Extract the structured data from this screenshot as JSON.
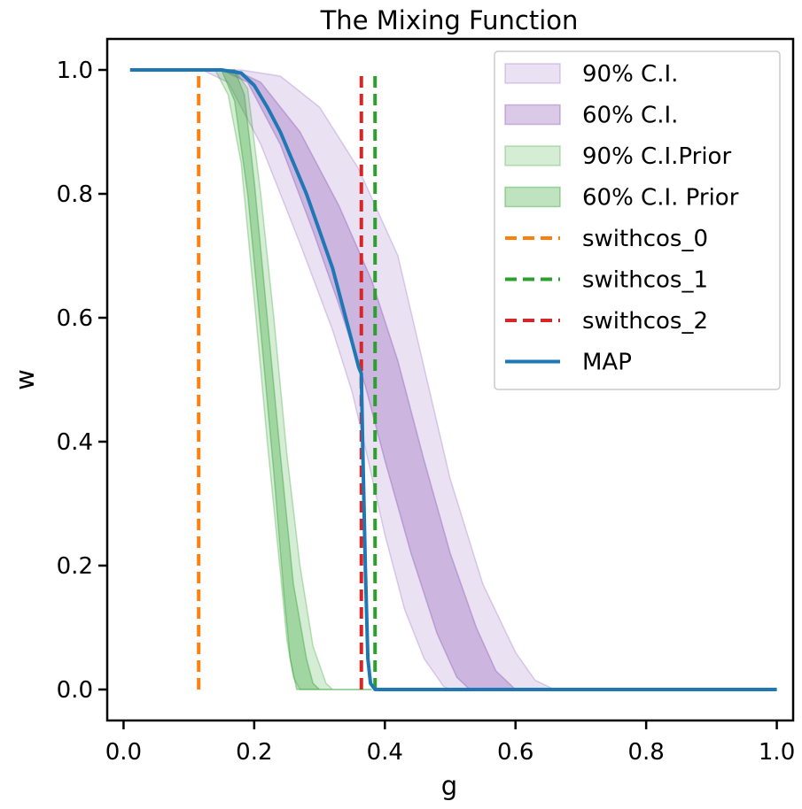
{
  "chart_data": {
    "type": "line",
    "title": "The Mixing Function",
    "xlabel": "g",
    "ylabel": "w",
    "xlim": [
      -0.025,
      1.025
    ],
    "ylim": [
      -0.05,
      1.05
    ],
    "xticks": [
      "0.0",
      "0.2",
      "0.4",
      "0.6",
      "0.8",
      "1.0"
    ],
    "yticks": [
      "0.0",
      "0.2",
      "0.4",
      "0.6",
      "0.8",
      "1.0"
    ],
    "grid": false,
    "legend_position": "top-right",
    "bands": [
      {
        "name": "90% C.I.",
        "color": "#9467bd",
        "opacity": 0.2,
        "upper": [
          [
            0.01,
            1.0
          ],
          [
            0.18,
            1.0
          ],
          [
            0.24,
            0.99
          ],
          [
            0.3,
            0.94
          ],
          [
            0.36,
            0.84
          ],
          [
            0.42,
            0.7
          ],
          [
            0.46,
            0.52
          ],
          [
            0.5,
            0.34
          ],
          [
            0.55,
            0.17
          ],
          [
            0.6,
            0.06
          ],
          [
            0.63,
            0.015
          ],
          [
            0.66,
            0.0
          ],
          [
            1.0,
            0.0
          ]
        ],
        "lower": [
          [
            0.01,
            1.0
          ],
          [
            0.12,
            1.0
          ],
          [
            0.16,
            0.98
          ],
          [
            0.21,
            0.88
          ],
          [
            0.27,
            0.72
          ],
          [
            0.32,
            0.58
          ],
          [
            0.35,
            0.48
          ],
          [
            0.37,
            0.39
          ],
          [
            0.4,
            0.25
          ],
          [
            0.43,
            0.13
          ],
          [
            0.46,
            0.05
          ],
          [
            0.49,
            0.005
          ],
          [
            0.5,
            0.0
          ],
          [
            1.0,
            0.0
          ]
        ]
      },
      {
        "name": "60% C.I.",
        "color": "#9467bd",
        "opacity": 0.35,
        "upper": [
          [
            0.01,
            1.0
          ],
          [
            0.17,
            1.0
          ],
          [
            0.21,
            0.98
          ],
          [
            0.27,
            0.9
          ],
          [
            0.33,
            0.78
          ],
          [
            0.38,
            0.66
          ],
          [
            0.42,
            0.53
          ],
          [
            0.46,
            0.37
          ],
          [
            0.5,
            0.22
          ],
          [
            0.54,
            0.1
          ],
          [
            0.57,
            0.03
          ],
          [
            0.6,
            0.0
          ],
          [
            1.0,
            0.0
          ]
        ],
        "lower": [
          [
            0.01,
            1.0
          ],
          [
            0.15,
            1.0
          ],
          [
            0.19,
            0.98
          ],
          [
            0.24,
            0.88
          ],
          [
            0.29,
            0.74
          ],
          [
            0.33,
            0.62
          ],
          [
            0.37,
            0.49
          ],
          [
            0.4,
            0.37
          ],
          [
            0.44,
            0.22
          ],
          [
            0.48,
            0.09
          ],
          [
            0.51,
            0.02
          ],
          [
            0.53,
            0.0
          ],
          [
            1.0,
            0.0
          ]
        ]
      },
      {
        "name": "90% C.I.Prior",
        "color": "#2ca02c",
        "opacity": 0.2,
        "upper": [
          [
            0.01,
            1.0
          ],
          [
            0.17,
            1.0
          ],
          [
            0.19,
            0.97
          ],
          [
            0.21,
            0.8
          ],
          [
            0.23,
            0.6
          ],
          [
            0.25,
            0.38
          ],
          [
            0.27,
            0.2
          ],
          [
            0.29,
            0.07
          ],
          [
            0.31,
            0.01
          ],
          [
            0.32,
            0.0
          ],
          [
            0.38,
            0.0
          ]
        ],
        "lower": [
          [
            0.01,
            1.0
          ],
          [
            0.14,
            1.0
          ],
          [
            0.16,
            0.96
          ],
          [
            0.18,
            0.85
          ],
          [
            0.2,
            0.63
          ],
          [
            0.22,
            0.4
          ],
          [
            0.24,
            0.19
          ],
          [
            0.25,
            0.08
          ],
          [
            0.26,
            0.02
          ],
          [
            0.27,
            0.0
          ],
          [
            0.38,
            0.0
          ]
        ]
      },
      {
        "name": "60% C.I. Prior",
        "color": "#2ca02c",
        "opacity": 0.3,
        "upper": [
          [
            0.01,
            1.0
          ],
          [
            0.17,
            1.0
          ],
          [
            0.185,
            0.96
          ],
          [
            0.2,
            0.82
          ],
          [
            0.22,
            0.6
          ],
          [
            0.24,
            0.38
          ],
          [
            0.26,
            0.17
          ],
          [
            0.28,
            0.05
          ],
          [
            0.29,
            0.01
          ],
          [
            0.3,
            0.0
          ],
          [
            0.38,
            0.0
          ]
        ],
        "lower": [
          [
            0.01,
            1.0
          ],
          [
            0.15,
            1.0
          ],
          [
            0.17,
            0.95
          ],
          [
            0.19,
            0.8
          ],
          [
            0.21,
            0.58
          ],
          [
            0.23,
            0.35
          ],
          [
            0.245,
            0.16
          ],
          [
            0.255,
            0.05
          ],
          [
            0.265,
            0.0
          ],
          [
            0.38,
            0.0
          ]
        ]
      }
    ],
    "vlines": [
      {
        "name": "swithcos_0",
        "x": 0.115,
        "color": "#ff7f0e",
        "y_from": 0.0,
        "y_to": 1.0
      },
      {
        "name": "swithcos_1",
        "x": 0.385,
        "color": "#2ca02c",
        "y_from": 0.0,
        "y_to": 1.0
      },
      {
        "name": "swithcos_2",
        "x": 0.364,
        "color": "#d62728",
        "y_from": 0.0,
        "y_to": 1.0
      }
    ],
    "series": [
      {
        "name": "MAP",
        "color": "#1f77b4",
        "points": [
          [
            0.01,
            1.0
          ],
          [
            0.15,
            1.0
          ],
          [
            0.18,
            0.995
          ],
          [
            0.2,
            0.975
          ],
          [
            0.22,
            0.94
          ],
          [
            0.24,
            0.9
          ],
          [
            0.26,
            0.85
          ],
          [
            0.28,
            0.8
          ],
          [
            0.3,
            0.74
          ],
          [
            0.32,
            0.68
          ],
          [
            0.34,
            0.6
          ],
          [
            0.36,
            0.52
          ],
          [
            0.364,
            0.51
          ],
          [
            0.366,
            0.4
          ],
          [
            0.37,
            0.2
          ],
          [
            0.374,
            0.05
          ],
          [
            0.378,
            0.01
          ],
          [
            0.385,
            0.0
          ],
          [
            1.0,
            0.0
          ]
        ]
      }
    ],
    "legend": [
      {
        "label": "90% C.I.",
        "kind": "patch",
        "color": "#9467bd",
        "opacity": 0.2
      },
      {
        "label": "60% C.I.",
        "kind": "patch",
        "color": "#9467bd",
        "opacity": 0.35
      },
      {
        "label": "90% C.I.Prior",
        "kind": "patch",
        "color": "#2ca02c",
        "opacity": 0.2
      },
      {
        "label": "60% C.I. Prior",
        "kind": "patch",
        "color": "#2ca02c",
        "opacity": 0.3
      },
      {
        "label": "swithcos_0",
        "kind": "dashed",
        "color": "#ff7f0e"
      },
      {
        "label": "swithcos_1",
        "kind": "dashed",
        "color": "#2ca02c"
      },
      {
        "label": "swithcos_2",
        "kind": "dashed",
        "color": "#d62728"
      },
      {
        "label": "MAP",
        "kind": "line",
        "color": "#1f77b4"
      }
    ]
  }
}
